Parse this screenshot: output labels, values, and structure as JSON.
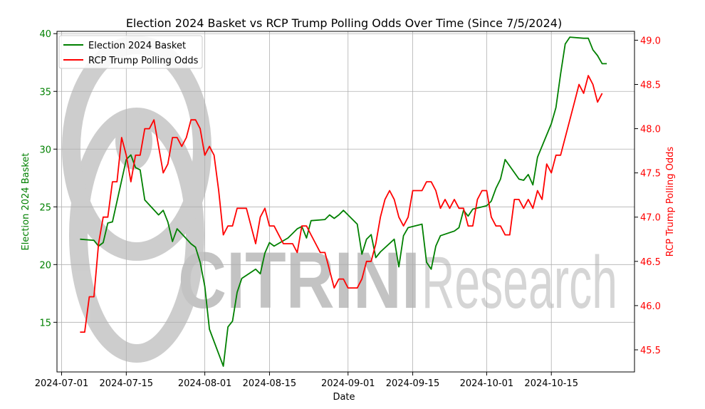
{
  "chart_data": {
    "type": "line",
    "title": "Election 2024 Basket vs RCP Trump Polling Odds Over Time (Since 7/5/2024)",
    "xlabel": "Date",
    "ylabel_left": "Election 2024 Basket",
    "ylabel_right": "RCP Trump Polling Odds",
    "x_ticks": [
      "2024-07-01",
      "2024-07-15",
      "2024-08-01",
      "2024-08-15",
      "2024-09-01",
      "2024-09-15",
      "2024-10-01",
      "2024-10-15"
    ],
    "xlim": [
      "2024-06-30",
      "2024-11-02"
    ],
    "y_left": {
      "ticks": [
        15,
        20,
        25,
        30,
        35,
        40
      ],
      "lim": [
        10.7,
        40.2
      ]
    },
    "y_right": {
      "ticks": [
        "45.5",
        "46.0",
        "46.5",
        "47.0",
        "47.5",
        "48.0",
        "48.5",
        "49.0"
      ],
      "lim": [
        45.25,
        49.1
      ]
    },
    "grid": true,
    "legend_position": "upper-left",
    "watermark": {
      "brand": "CITRINI",
      "suffix": "Research"
    },
    "series": [
      {
        "name": "Election 2024 Basket",
        "color": "#008000",
        "axis": "left",
        "points": [
          [
            "2024-07-05",
            22.2
          ],
          [
            "2024-07-08",
            22.1
          ],
          [
            "2024-07-09",
            21.6
          ],
          [
            "2024-07-10",
            21.9
          ],
          [
            "2024-07-11",
            23.6
          ],
          [
            "2024-07-12",
            23.7
          ],
          [
            "2024-07-15",
            29.1
          ],
          [
            "2024-07-16",
            29.5
          ],
          [
            "2024-07-17",
            28.4
          ],
          [
            "2024-07-18",
            28.2
          ],
          [
            "2024-07-19",
            25.6
          ],
          [
            "2024-07-22",
            24.3
          ],
          [
            "2024-07-23",
            24.7
          ],
          [
            "2024-07-24",
            23.7
          ],
          [
            "2024-07-25",
            22.0
          ],
          [
            "2024-07-26",
            23.1
          ],
          [
            "2024-07-29",
            21.8
          ],
          [
            "2024-07-30",
            21.5
          ],
          [
            "2024-07-31",
            20.2
          ],
          [
            "2024-08-01",
            18.1
          ],
          [
            "2024-08-02",
            14.4
          ],
          [
            "2024-08-05",
            11.2
          ],
          [
            "2024-08-06",
            14.6
          ],
          [
            "2024-08-07",
            15.1
          ],
          [
            "2024-08-08",
            17.6
          ],
          [
            "2024-08-09",
            18.8
          ],
          [
            "2024-08-12",
            19.6
          ],
          [
            "2024-08-13",
            19.2
          ],
          [
            "2024-08-14",
            21.0
          ],
          [
            "2024-08-15",
            21.9
          ],
          [
            "2024-08-16",
            21.6
          ],
          [
            "2024-08-19",
            22.3
          ],
          [
            "2024-08-20",
            22.7
          ],
          [
            "2024-08-21",
            23.1
          ],
          [
            "2024-08-22",
            23.3
          ],
          [
            "2024-08-23",
            22.3
          ],
          [
            "2024-08-24",
            23.8
          ],
          [
            "2024-08-27",
            23.9
          ],
          [
            "2024-08-28",
            24.3
          ],
          [
            "2024-08-29",
            24.0
          ],
          [
            "2024-08-30",
            24.3
          ],
          [
            "2024-08-31",
            24.7
          ],
          [
            "2024-09-03",
            23.5
          ],
          [
            "2024-09-04",
            20.9
          ],
          [
            "2024-09-05",
            22.2
          ],
          [
            "2024-09-06",
            22.6
          ],
          [
            "2024-09-07",
            20.6
          ],
          [
            "2024-09-08",
            21.1
          ],
          [
            "2024-09-11",
            22.2
          ],
          [
            "2024-09-12",
            19.8
          ],
          [
            "2024-09-13",
            22.5
          ],
          [
            "2024-09-14",
            23.2
          ],
          [
            "2024-09-17",
            23.5
          ],
          [
            "2024-09-18",
            20.2
          ],
          [
            "2024-09-19",
            19.6
          ],
          [
            "2024-09-20",
            21.6
          ],
          [
            "2024-09-21",
            22.5
          ],
          [
            "2024-09-24",
            22.9
          ],
          [
            "2024-09-25",
            23.2
          ],
          [
            "2024-09-26",
            24.7
          ],
          [
            "2024-09-27",
            24.2
          ],
          [
            "2024-09-28",
            24.8
          ],
          [
            "2024-10-01",
            25.1
          ],
          [
            "2024-10-02",
            25.5
          ],
          [
            "2024-10-03",
            26.6
          ],
          [
            "2024-10-04",
            27.4
          ],
          [
            "2024-10-05",
            29.1
          ],
          [
            "2024-10-08",
            27.4
          ],
          [
            "2024-10-09",
            27.3
          ],
          [
            "2024-10-10",
            27.8
          ],
          [
            "2024-10-11",
            26.9
          ],
          [
            "2024-10-12",
            29.3
          ],
          [
            "2024-10-15",
            32.2
          ],
          [
            "2024-10-16",
            33.6
          ],
          [
            "2024-10-17",
            36.5
          ],
          [
            "2024-10-18",
            39.1
          ],
          [
            "2024-10-19",
            39.7
          ],
          [
            "2024-10-22",
            39.6
          ],
          [
            "2024-10-23",
            39.6
          ],
          [
            "2024-10-24",
            38.6
          ],
          [
            "2024-10-25",
            38.1
          ],
          [
            "2024-10-26",
            37.4
          ],
          [
            "2024-10-27",
            37.4
          ]
        ]
      },
      {
        "name": "RCP Trump Polling Odds",
        "color": "#ff0000",
        "axis": "right",
        "points": [
          [
            "2024-07-05",
            45.7
          ],
          [
            "2024-07-06",
            45.7
          ],
          [
            "2024-07-07",
            46.1
          ],
          [
            "2024-07-08",
            46.1
          ],
          [
            "2024-07-09",
            46.7
          ],
          [
            "2024-07-10",
            47.0
          ],
          [
            "2024-07-11",
            47.0
          ],
          [
            "2024-07-12",
            47.4
          ],
          [
            "2024-07-13",
            47.4
          ],
          [
            "2024-07-14",
            47.9
          ],
          [
            "2024-07-15",
            47.7
          ],
          [
            "2024-07-16",
            47.4
          ],
          [
            "2024-07-17",
            47.7
          ],
          [
            "2024-07-18",
            47.7
          ],
          [
            "2024-07-19",
            48.0
          ],
          [
            "2024-07-20",
            48.0
          ],
          [
            "2024-07-21",
            48.1
          ],
          [
            "2024-07-22",
            47.8
          ],
          [
            "2024-07-23",
            47.5
          ],
          [
            "2024-07-24",
            47.6
          ],
          [
            "2024-07-25",
            47.9
          ],
          [
            "2024-07-26",
            47.9
          ],
          [
            "2024-07-27",
            47.8
          ],
          [
            "2024-07-28",
            47.9
          ],
          [
            "2024-07-29",
            48.1
          ],
          [
            "2024-07-30",
            48.1
          ],
          [
            "2024-07-31",
            48.0
          ],
          [
            "2024-08-01",
            47.7
          ],
          [
            "2024-08-02",
            47.8
          ],
          [
            "2024-08-03",
            47.7
          ],
          [
            "2024-08-04",
            47.3
          ],
          [
            "2024-08-05",
            46.8
          ],
          [
            "2024-08-06",
            46.9
          ],
          [
            "2024-08-07",
            46.9
          ],
          [
            "2024-08-08",
            47.1
          ],
          [
            "2024-08-09",
            47.1
          ],
          [
            "2024-08-10",
            47.1
          ],
          [
            "2024-08-11",
            46.9
          ],
          [
            "2024-08-12",
            46.7
          ],
          [
            "2024-08-13",
            47.0
          ],
          [
            "2024-08-14",
            47.1
          ],
          [
            "2024-08-15",
            46.9
          ],
          [
            "2024-08-16",
            46.9
          ],
          [
            "2024-08-17",
            46.8
          ],
          [
            "2024-08-18",
            46.7
          ],
          [
            "2024-08-19",
            46.7
          ],
          [
            "2024-08-20",
            46.7
          ],
          [
            "2024-08-21",
            46.6
          ],
          [
            "2024-08-22",
            46.9
          ],
          [
            "2024-08-23",
            46.9
          ],
          [
            "2024-08-24",
            46.8
          ],
          [
            "2024-08-25",
            46.7
          ],
          [
            "2024-08-26",
            46.6
          ],
          [
            "2024-08-27",
            46.6
          ],
          [
            "2024-08-28",
            46.4
          ],
          [
            "2024-08-29",
            46.2
          ],
          [
            "2024-08-30",
            46.3
          ],
          [
            "2024-08-31",
            46.3
          ],
          [
            "2024-09-01",
            46.2
          ],
          [
            "2024-09-02",
            46.2
          ],
          [
            "2024-09-03",
            46.2
          ],
          [
            "2024-09-04",
            46.3
          ],
          [
            "2024-09-05",
            46.5
          ],
          [
            "2024-09-06",
            46.5
          ],
          [
            "2024-09-07",
            46.7
          ],
          [
            "2024-09-08",
            47.0
          ],
          [
            "2024-09-09",
            47.2
          ],
          [
            "2024-09-10",
            47.3
          ],
          [
            "2024-09-11",
            47.2
          ],
          [
            "2024-09-12",
            47.0
          ],
          [
            "2024-09-13",
            46.9
          ],
          [
            "2024-09-14",
            47.0
          ],
          [
            "2024-09-15",
            47.3
          ],
          [
            "2024-09-16",
            47.3
          ],
          [
            "2024-09-17",
            47.3
          ],
          [
            "2024-09-18",
            47.4
          ],
          [
            "2024-09-19",
            47.4
          ],
          [
            "2024-09-20",
            47.3
          ],
          [
            "2024-09-21",
            47.1
          ],
          [
            "2024-09-22",
            47.2
          ],
          [
            "2024-09-23",
            47.1
          ],
          [
            "2024-09-24",
            47.2
          ],
          [
            "2024-09-25",
            47.1
          ],
          [
            "2024-09-26",
            47.1
          ],
          [
            "2024-09-27",
            46.9
          ],
          [
            "2024-09-28",
            46.9
          ],
          [
            "2024-09-29",
            47.2
          ],
          [
            "2024-09-30",
            47.3
          ],
          [
            "2024-10-01",
            47.3
          ],
          [
            "2024-10-02",
            47.0
          ],
          [
            "2024-10-03",
            46.9
          ],
          [
            "2024-10-04",
            46.9
          ],
          [
            "2024-10-05",
            46.8
          ],
          [
            "2024-10-06",
            46.8
          ],
          [
            "2024-10-07",
            47.2
          ],
          [
            "2024-10-08",
            47.2
          ],
          [
            "2024-10-09",
            47.1
          ],
          [
            "2024-10-10",
            47.2
          ],
          [
            "2024-10-11",
            47.1
          ],
          [
            "2024-10-12",
            47.3
          ],
          [
            "2024-10-13",
            47.2
          ],
          [
            "2024-10-14",
            47.6
          ],
          [
            "2024-10-15",
            47.5
          ],
          [
            "2024-10-16",
            47.7
          ],
          [
            "2024-10-17",
            47.7
          ],
          [
            "2024-10-18",
            47.9
          ],
          [
            "2024-10-19",
            48.1
          ],
          [
            "2024-10-20",
            48.3
          ],
          [
            "2024-10-21",
            48.5
          ],
          [
            "2024-10-22",
            48.4
          ],
          [
            "2024-10-23",
            48.6
          ],
          [
            "2024-10-24",
            48.5
          ],
          [
            "2024-10-25",
            48.3
          ],
          [
            "2024-10-26",
            48.4
          ]
        ]
      }
    ]
  }
}
